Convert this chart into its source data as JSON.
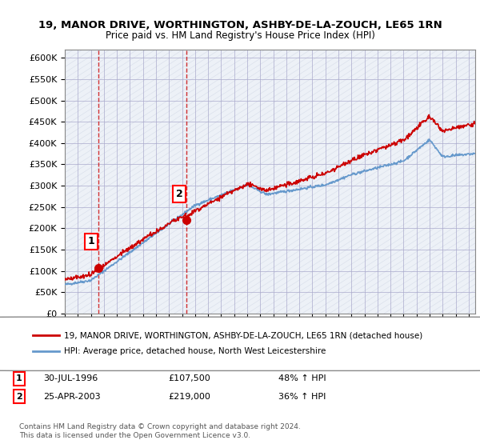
{
  "title_line1": "19, MANOR DRIVE, WORTHINGTON, ASHBY-DE-LA-ZOUCH, LE65 1RN",
  "title_line2": "Price paid vs. HM Land Registry's House Price Index (HPI)",
  "legend_line1": "19, MANOR DRIVE, WORTHINGTON, ASHBY-DE-LA-ZOUCH, LE65 1RN (detached house)",
  "legend_line2": "HPI: Average price, detached house, North West Leicestershire",
  "footer": "Contains HM Land Registry data © Crown copyright and database right 2024.\nThis data is licensed under the Open Government Licence v3.0.",
  "sale1_label": "1",
  "sale1_date": "30-JUL-1996",
  "sale1_price": "£107,500",
  "sale1_hpi": "48% ↑ HPI",
  "sale1_year": 1996.58,
  "sale1_value": 107500,
  "sale2_label": "2",
  "sale2_date": "25-APR-2003",
  "sale2_price": "£219,000",
  "sale2_hpi": "36% ↑ HPI",
  "sale2_year": 2003.31,
  "sale2_value": 219000,
  "price_line_color": "#cc0000",
  "hpi_line_color": "#6699cc",
  "background_hatch_color": "#d0d8e8",
  "grid_color": "#aaaacc",
  "ylim": [
    0,
    620000
  ],
  "xlim_start": 1994.0,
  "xlim_end": 2025.5,
  "yticks": [
    0,
    50000,
    100000,
    150000,
    200000,
    250000,
    300000,
    350000,
    400000,
    450000,
    500000,
    550000,
    600000
  ],
  "ytick_labels": [
    "£0",
    "£50K",
    "£100K",
    "£150K",
    "£200K",
    "£250K",
    "£300K",
    "£350K",
    "£400K",
    "£450K",
    "£500K",
    "£550K",
    "£600K"
  ]
}
